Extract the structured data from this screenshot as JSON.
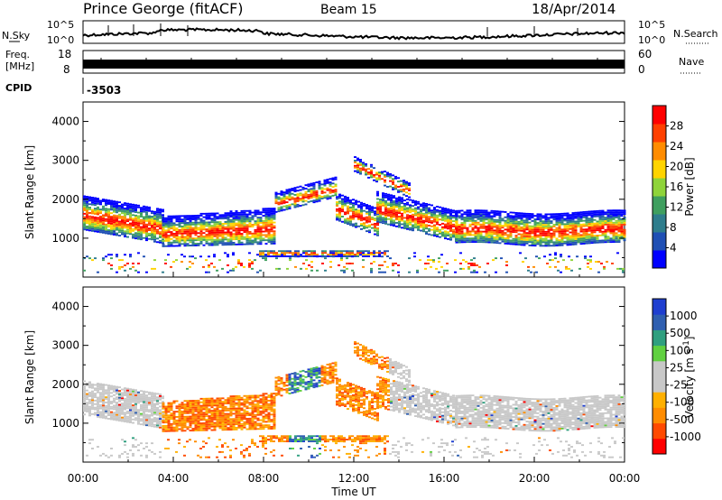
{
  "header": {
    "station": "Prince George (fitACF)",
    "beam": "Beam 15",
    "date": "18/Apr/2014"
  },
  "strips": {
    "nsky_label": "N.Sky",
    "nsearch_label": "N.Search",
    "nsky_tick_top": "10^5",
    "nsky_tick_bottom": "10^0",
    "freq_label_1": "Freq.",
    "freq_label_2": "[MHz]",
    "freq_tick_top": "18",
    "freq_tick_bottom": "8",
    "nave_label": "Nave",
    "nave_tick_top": "60",
    "nave_tick_bottom": "0",
    "cpid_label": "CPID",
    "cpid_value": "-3503"
  },
  "colors": {
    "power_scale": [
      "#0000ff",
      "#1f4fb4",
      "#2e7d8c",
      "#3f9f5f",
      "#8fd43a",
      "#ffd400",
      "#ff8c00",
      "#ff4000",
      "#ff0000"
    ],
    "velocity_scale": [
      "#ff0000",
      "#ff4a00",
      "#ff8c00",
      "#ffb000",
      "#c8c8c8",
      "#c8c8c8",
      "#60d040",
      "#2f9f7f",
      "#2f5fb0",
      "#1f3fd0"
    ]
  },
  "chart_data": [
    {
      "type": "heatmap",
      "name": "power",
      "ylabel": "Slant Range [km]",
      "yticks": [
        "1000",
        "2000",
        "3000",
        "4000"
      ],
      "ylim": [
        0,
        4500
      ],
      "xlim": [
        "00:00",
        "24:00"
      ],
      "colorbar_label": "Power [dB]",
      "colorbar_ticks": [
        "4",
        "8",
        "12",
        "16",
        "20",
        "24",
        "28"
      ],
      "colorbar_range": [
        0,
        32
      ]
    },
    {
      "type": "heatmap",
      "name": "velocity",
      "ylabel": "Slant Range [km]",
      "yticks": [
        "1000",
        "2000",
        "3000",
        "4000"
      ],
      "ylim": [
        0,
        4500
      ],
      "xlim": [
        "00:00",
        "24:00"
      ],
      "colorbar_label": "Velocity [m s",
      "colorbar_label_sup": "-1",
      "colorbar_label_close": "]",
      "colorbar_ticks": [
        "-1000",
        "-500",
        "-100",
        "-25",
        "25",
        "100",
        "500",
        "1000"
      ]
    }
  ],
  "xaxis": {
    "ticks": [
      "00:00",
      "04:00",
      "08:00",
      "12:00",
      "16:00",
      "20:00",
      "00:00"
    ],
    "label": "Time UT"
  }
}
